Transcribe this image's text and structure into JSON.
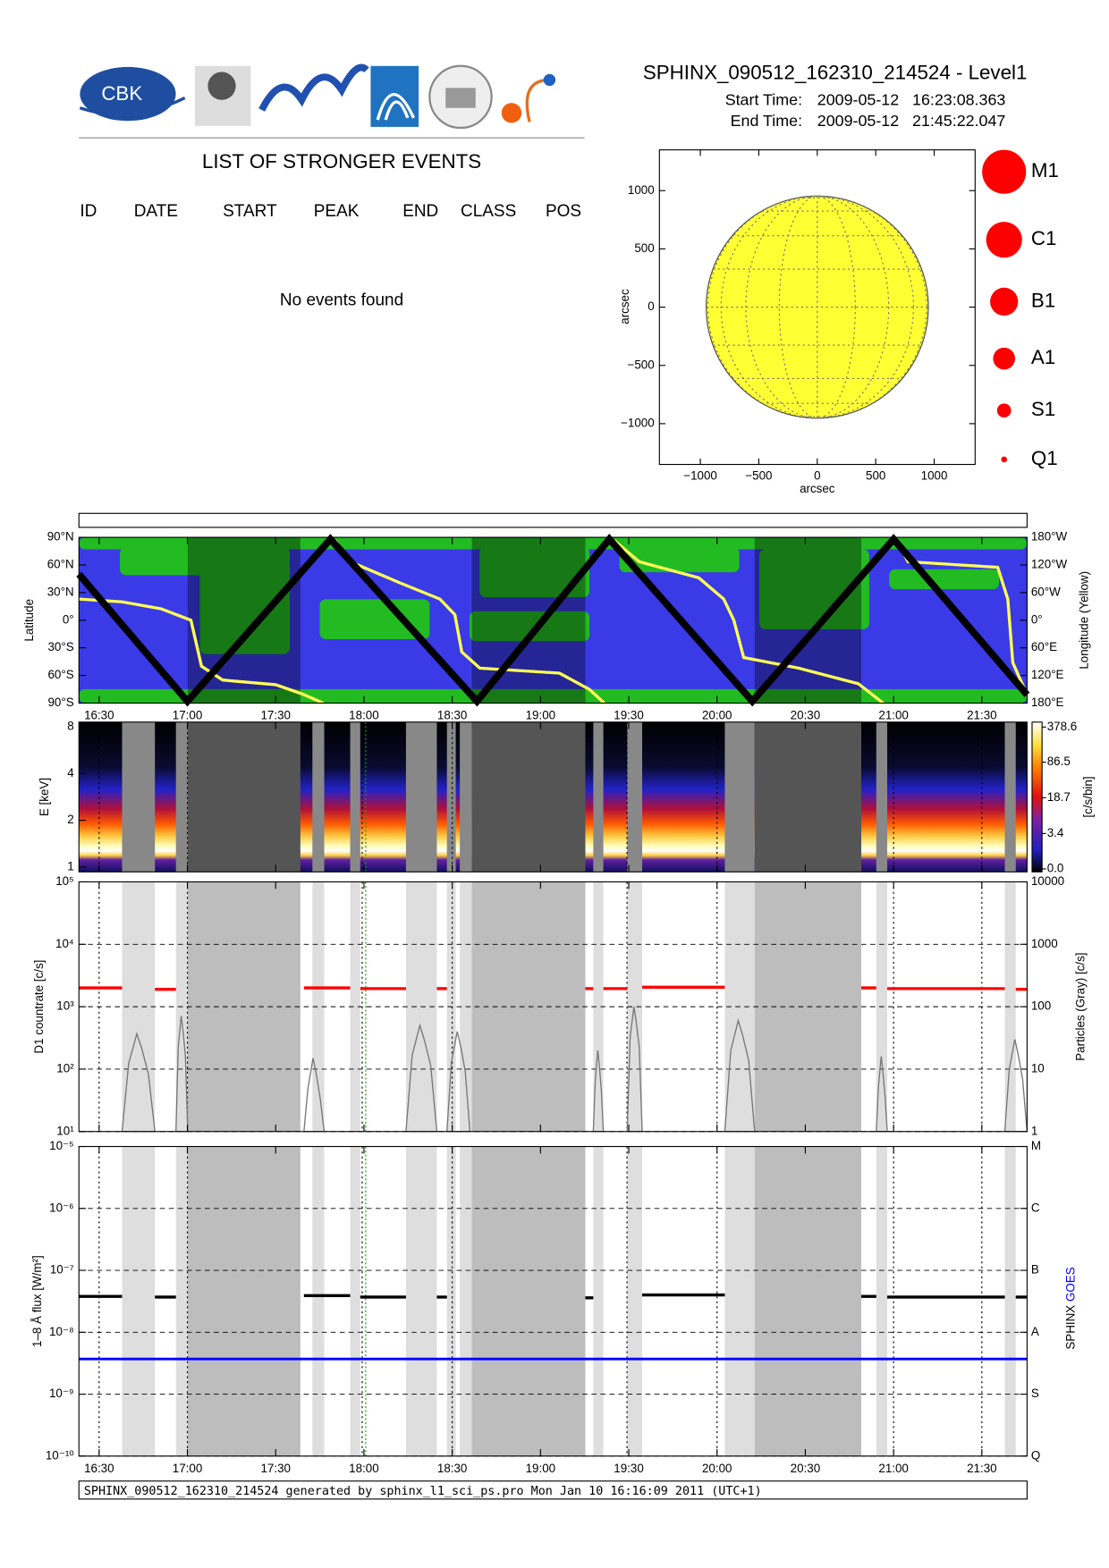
{
  "header": {
    "title": "SPHINX_090512_162310_214524 - Level1",
    "start_label": "Start Time:",
    "start_value": "2009-05-12   16:23:08.363",
    "end_label": "End Time:",
    "end_value": "2009-05-12   21:45:22.047"
  },
  "logo": {
    "text": "CBK"
  },
  "events": {
    "title": "LIST OF STRONGER EVENTS",
    "columns": [
      "ID",
      "DATE",
      "START",
      "PEAK",
      "END",
      "CLASS",
      "POS"
    ],
    "message": "No events found"
  },
  "sun_map": {
    "xlabel": "arcsec",
    "ylabel": "arcsec",
    "xlim": [
      -1350,
      1350
    ],
    "ylim": [
      -1350,
      1350
    ],
    "xticks": [
      {
        "value": -1000,
        "label": "−1000"
      },
      {
        "value": -500,
        "label": "−500"
      },
      0,
      500,
      1000
    ],
    "yticks": [
      {
        "value": -1000,
        "label": "−1000"
      },
      {
        "value": -500,
        "label": "−500"
      },
      0,
      500,
      1000
    ],
    "disk_radius": 950,
    "disk_color": "#ffff33"
  },
  "classes": [
    "M1",
    "C1",
    "B1",
    "A1",
    "S1",
    "Q1"
  ],
  "time_axis": {
    "xlim": [
      16.3856,
      21.7561
    ],
    "xticks": [
      {
        "value": 16.5,
        "label": "16:30"
      },
      {
        "value": 17,
        "label": "17:00"
      },
      {
        "value": 17.5,
        "label": "17:30"
      },
      {
        "value": 18,
        "label": "18:00"
      },
      {
        "value": 18.5,
        "label": "18:30"
      },
      {
        "value": 19,
        "label": "19:00"
      },
      {
        "value": 19.5,
        "label": "19:30"
      },
      {
        "value": 20,
        "label": "20:00"
      },
      {
        "value": 20.5,
        "label": "20:30"
      },
      {
        "value": 21,
        "label": "21:00"
      },
      {
        "value": 21.5,
        "label": "21:30"
      }
    ]
  },
  "gaps": [
    {
      "x": [
        16.63,
        16.816
      ],
      "shade": "light"
    },
    {
      "x": [
        16.935,
        17.002
      ],
      "shade": "light"
    },
    {
      "x": [
        17.002,
        17.64
      ],
      "shade": "dark"
    },
    {
      "x": [
        17.708,
        17.775
      ],
      "shade": "light"
    },
    {
      "x": [
        17.922,
        17.979
      ],
      "shade": "light"
    },
    {
      "x": [
        18.238,
        18.413
      ],
      "shade": "light"
    },
    {
      "x": [
        18.47,
        18.52
      ],
      "shade": "light"
    },
    {
      "x": [
        18.543,
        18.611
      ],
      "shade": "light"
    },
    {
      "x": [
        18.611,
        19.254
      ],
      "shade": "dark"
    },
    {
      "x": [
        19.299,
        19.356
      ],
      "shade": "light"
    },
    {
      "x": [
        19.491,
        19.576
      ],
      "shade": "light"
    },
    {
      "x": [
        20.044,
        20.213
      ],
      "shade": "light"
    },
    {
      "x": [
        20.213,
        20.817
      ],
      "shade": "dark"
    },
    {
      "x": [
        20.902,
        20.964
      ],
      "shade": "light"
    },
    {
      "x": [
        21.63,
        21.692
      ],
      "shade": "light"
    }
  ],
  "orbit_panel": {
    "ylabel": "Latitude",
    "y2label": "Longitude (Yellow)",
    "ylim": [
      -90,
      90
    ],
    "yticks": [
      {
        "value": 90,
        "label": "90°N"
      },
      {
        "value": 60,
        "label": "60°N"
      },
      {
        "value": 30,
        "label": "30°N"
      },
      {
        "value": 0,
        "label": "0°"
      },
      {
        "value": -30,
        "label": "30°S"
      },
      {
        "value": -60,
        "label": "60°S"
      },
      {
        "value": -90,
        "label": "90°S"
      }
    ],
    "y2lim": [
      -180,
      180
    ],
    "y2ticks": [
      {
        "value": 180,
        "label": "180°W"
      },
      {
        "value": 120,
        "label": "120°W"
      },
      {
        "value": 60,
        "label": "60°W"
      },
      {
        "value": 0,
        "label": "0°"
      },
      {
        "value": -60,
        "label": "60°E"
      },
      {
        "value": -120,
        "label": "120°E"
      },
      {
        "value": -180,
        "label": "180°E"
      }
    ],
    "latitude": {
      "color": "#000000",
      "x": [
        16.3856,
        17.0,
        17.81,
        18.64,
        19.39,
        20.2,
        21.0,
        21.7561
      ],
      "values": [
        50,
        -88,
        88,
        -88,
        88,
        -88,
        88,
        -81
      ]
    },
    "longitude": {
      "color": "#ffff55",
      "x": [
        16.3856,
        16.63,
        16.85,
        17.02,
        17.08,
        17.2,
        17.5,
        17.65,
        17.77,
        17.8,
        17.837,
        17.922,
        18.204,
        18.43,
        18.515,
        18.554,
        18.656,
        19.107,
        19.277,
        19.361,
        19.39,
        19.418,
        19.559,
        19.897,
        20.038,
        20.095,
        20.151,
        20.462,
        20.8,
        20.941,
        20.98,
        21.009,
        21.082,
        21.59,
        21.647,
        21.675,
        21.7561
      ],
      "values": [
        46,
        40,
        25,
        0,
        -100,
        -130,
        -140,
        -160,
        -180,
        null,
        173,
        127,
        81,
        46,
        12,
        -69,
        -104,
        -115,
        -150,
        -180,
        null,
        173,
        127,
        92,
        46,
        0,
        -81,
        -104,
        -138,
        -180,
        null,
        180,
        127,
        115,
        46,
        -92,
        -162
      ]
    }
  },
  "spectrum_panel": {
    "ylabel": "E [keV]",
    "ylim": [
      0.93,
      8.6
    ],
    "yticks": [
      1,
      2,
      4,
      8
    ],
    "colorbar": {
      "label": "[c/s/bin]",
      "clim": [
        0,
        378.6
      ],
      "ticks": [
        378.6,
        86.5,
        18.7,
        3.4,
        {
          "value": 0,
          "label": "0.0"
        }
      ]
    }
  },
  "d1_panel": {
    "ylabel": "D1 countrate [c/s]",
    "y2label": "Particles (Gray) [c/s]",
    "ylim": [
      10,
      100000
    ],
    "yticks": [
      {
        "value": 10,
        "label": "10¹"
      },
      {
        "value": 100,
        "label": "10²"
      },
      {
        "value": 1000,
        "label": "10³"
      },
      {
        "value": 10000,
        "label": "10⁴"
      },
      {
        "value": 100000,
        "label": "10⁵"
      }
    ],
    "y2lim": [
      1,
      10000
    ],
    "y2ticks": [
      1,
      10,
      100,
      1000,
      10000
    ],
    "counts": {
      "color": "#ff0000",
      "segments": [
        {
          "x": [
            16.3856,
            16.63
          ],
          "value": 2000
        },
        {
          "x": [
            16.816,
            16.935
          ],
          "value": 1900
        },
        {
          "x": [
            17.66,
            17.922
          ],
          "value": 2000
        },
        {
          "x": [
            17.979,
            18.238
          ],
          "value": 1950
        },
        {
          "x": [
            18.413,
            18.47
          ],
          "value": 1950
        },
        {
          "x": [
            19.254,
            19.299
          ],
          "value": 1950
        },
        {
          "x": [
            19.356,
            19.491
          ],
          "value": 1950
        },
        {
          "x": [
            19.576,
            20.044
          ],
          "value": 2050
        },
        {
          "x": [
            20.817,
            20.902
          ],
          "value": 2000
        },
        {
          "x": [
            20.964,
            21.63
          ],
          "value": 1950
        },
        {
          "x": [
            21.692,
            21.7561
          ],
          "value": 1900
        }
      ]
    },
    "particles": {
      "color": "#777777",
      "bursts": [
        {
          "x": [
            16.63,
            16.816
          ],
          "value": 37
        },
        {
          "x": [
            16.935,
            17.002
          ],
          "value": 71
        },
        {
          "x": [
            17.66,
            17.775
          ],
          "value": 15
        },
        {
          "x": [
            18.238,
            18.413
          ],
          "value": 50
        },
        {
          "x": [
            18.47,
            18.6
          ],
          "value": 40
        },
        {
          "x": [
            19.299,
            19.356
          ],
          "value": 20
        },
        {
          "x": [
            19.491,
            19.576
          ],
          "value": 100
        },
        {
          "x": [
            20.044,
            20.213
          ],
          "value": 60
        },
        {
          "x": [
            20.902,
            20.964
          ],
          "value": 16
        },
        {
          "x": [
            21.63,
            21.7561
          ],
          "value": 30
        }
      ]
    }
  },
  "flux_panel": {
    "ylabel": "1–8 Å flux [W/m²]",
    "y2label_sphinx": "SPHINX",
    "y2label_goes": "GOES",
    "ylim": [
      1e-10,
      1e-05
    ],
    "yticks": [
      {
        "value": 1e-10,
        "label": "10⁻¹⁰"
      },
      {
        "value": 1e-09,
        "label": "10⁻⁹"
      },
      {
        "value": 1e-08,
        "label": "10⁻⁸"
      },
      {
        "value": 1e-07,
        "label": "10⁻⁷"
      },
      {
        "value": 1e-06,
        "label": "10⁻⁶"
      },
      {
        "value": 1e-05,
        "label": "10⁻⁵"
      }
    ],
    "y2ticks": [
      {
        "value": 1e-05,
        "label": "M"
      },
      {
        "value": 1e-06,
        "label": "C"
      },
      {
        "value": 1e-07,
        "label": "B"
      },
      {
        "value": 1e-08,
        "label": "A"
      },
      {
        "value": 1e-09,
        "label": "S"
      },
      {
        "value": 1e-10,
        "label": "Q"
      }
    ],
    "sphinx": {
      "color": "#000000",
      "segments": [
        {
          "x": [
            16.3856,
            16.63
          ],
          "value": 3.8e-08
        },
        {
          "x": [
            16.816,
            16.935
          ],
          "value": 3.7e-08
        },
        {
          "x": [
            17.66,
            17.922
          ],
          "value": 3.9e-08
        },
        {
          "x": [
            17.979,
            18.238
          ],
          "value": 3.7e-08
        },
        {
          "x": [
            18.413,
            18.47
          ],
          "value": 3.7e-08
        },
        {
          "x": [
            19.254,
            19.299
          ],
          "value": 3.6e-08
        },
        {
          "x": [
            19.576,
            20.044
          ],
          "value": 4e-08
        },
        {
          "x": [
            20.817,
            20.902
          ],
          "value": 3.8e-08
        },
        {
          "x": [
            20.964,
            21.63
          ],
          "value": 3.7e-08
        },
        {
          "x": [
            21.692,
            21.7561
          ],
          "value": 3.7e-08
        }
      ]
    },
    "goes": {
      "color": "#0000ff",
      "x": [
        16.3856,
        21.7561
      ],
      "value": 3.7e-09
    }
  },
  "dotted_lines": [
    16.5,
    17.0,
    17.99,
    18.5,
    19.49,
    20.0,
    21.0,
    21.5
  ],
  "marker_line": {
    "color": "#00aa00",
    "x": 18.01
  },
  "footer": "SPHINX_090512_162310_214524 generated by sphinx_l1_sci_ps.pro Mon Jan 10 16:16:09 2011 (UTC+1)"
}
